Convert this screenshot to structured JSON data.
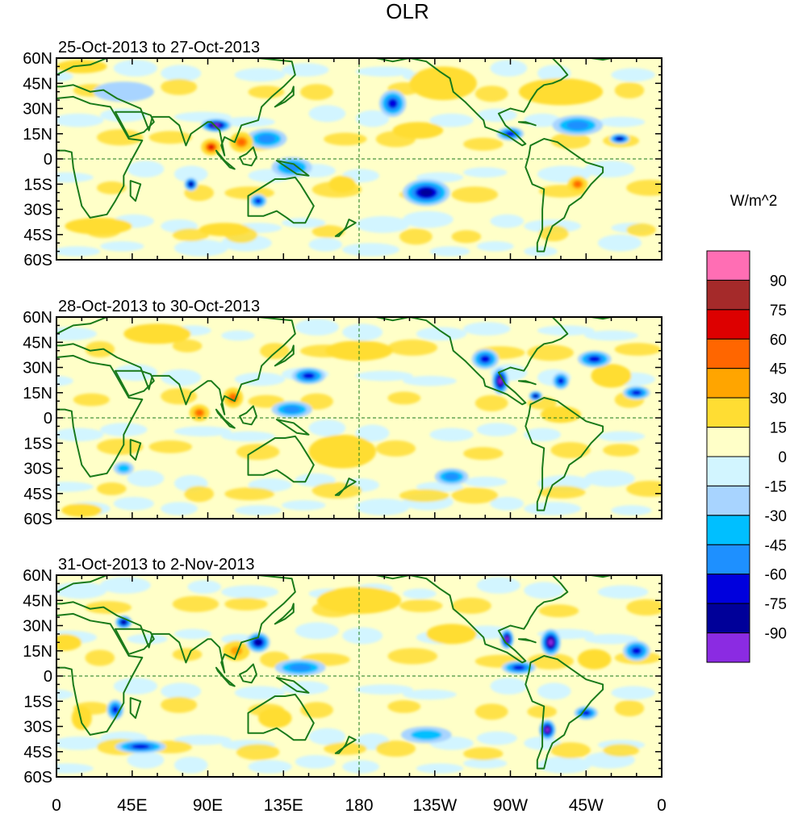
{
  "chart_data": {
    "type": "heatmap",
    "title": "OLR",
    "units_label": "W/m^2",
    "x_ticks": [
      "0",
      "45E",
      "90E",
      "135E",
      "180",
      "135W",
      "90W",
      "45W",
      "0"
    ],
    "y_ticks": [
      "60N",
      "45N",
      "30N",
      "15N",
      "0",
      "15S",
      "30S",
      "45S",
      "60S"
    ],
    "lon_range": [
      0,
      360
    ],
    "lat_range": [
      -60,
      60
    ],
    "panels": [
      {
        "label": "25-Oct-2013 to 27-Oct-2013",
        "anomalies": [
          {
            "lon": 95,
            "lat": 20,
            "rx": 9,
            "ry": 4,
            "value": -90
          },
          {
            "lon": 80,
            "lat": -15,
            "rx": 4,
            "ry": 4,
            "value": -75
          },
          {
            "lon": 120,
            "lat": -25,
            "rx": 5,
            "ry": 4,
            "value": -60
          },
          {
            "lon": 200,
            "lat": 33,
            "rx": 8,
            "ry": 8,
            "value": -60
          },
          {
            "lon": 220,
            "lat": -20,
            "rx": 14,
            "ry": 8,
            "value": -75
          },
          {
            "lon": 270,
            "lat": 15,
            "rx": 8,
            "ry": 4,
            "value": -60
          },
          {
            "lon": 310,
            "lat": 20,
            "rx": 15,
            "ry": 6,
            "value": -45
          },
          {
            "lon": 335,
            "lat": 12,
            "rx": 6,
            "ry": 3,
            "value": -75
          },
          {
            "lon": 125,
            "lat": 12,
            "rx": 12,
            "ry": 6,
            "value": -45
          },
          {
            "lon": 140,
            "lat": -5,
            "rx": 12,
            "ry": 6,
            "value": -45
          },
          {
            "lon": 40,
            "lat": 40,
            "rx": 18,
            "ry": 6,
            "value": -15
          },
          {
            "lon": 92,
            "lat": 7,
            "rx": 6,
            "ry": 5,
            "value": 75
          },
          {
            "lon": 110,
            "lat": 10,
            "rx": 7,
            "ry": 6,
            "value": 60
          },
          {
            "lon": 15,
            "lat": 55,
            "rx": 15,
            "ry": 4,
            "value": 30
          },
          {
            "lon": 230,
            "lat": 45,
            "rx": 20,
            "ry": 10,
            "value": 30
          },
          {
            "lon": 300,
            "lat": 40,
            "rx": 25,
            "ry": 8,
            "value": 30
          },
          {
            "lon": 310,
            "lat": -15,
            "rx": 6,
            "ry": 5,
            "value": 60
          },
          {
            "lon": 215,
            "lat": 17,
            "rx": 15,
            "ry": 5,
            "value": 30
          },
          {
            "lon": 25,
            "lat": -40,
            "rx": 20,
            "ry": 5,
            "value": 30
          },
          {
            "lon": 170,
            "lat": -15,
            "rx": 8,
            "ry": 5,
            "value": 30
          },
          {
            "lon": 100,
            "lat": -42,
            "rx": 15,
            "ry": 4,
            "value": 30
          }
        ]
      },
      {
        "label": "28-Oct-2013 to 30-Oct-2013",
        "anomalies": [
          {
            "lon": 264,
            "lat": 22,
            "rx": 5,
            "ry": 8,
            "value": -90
          },
          {
            "lon": 255,
            "lat": 35,
            "rx": 8,
            "ry": 6,
            "value": -60
          },
          {
            "lon": 285,
            "lat": 13,
            "rx": 4,
            "ry": 3,
            "value": -75
          },
          {
            "lon": 300,
            "lat": 22,
            "rx": 5,
            "ry": 5,
            "value": -60
          },
          {
            "lon": 320,
            "lat": 35,
            "rx": 10,
            "ry": 5,
            "value": -60
          },
          {
            "lon": 345,
            "lat": 15,
            "rx": 8,
            "ry": 4,
            "value": -60
          },
          {
            "lon": 150,
            "lat": 25,
            "rx": 10,
            "ry": 5,
            "value": -60
          },
          {
            "lon": 140,
            "lat": 5,
            "rx": 12,
            "ry": 5,
            "value": -45
          },
          {
            "lon": 235,
            "lat": -35,
            "rx": 10,
            "ry": 5,
            "value": -45
          },
          {
            "lon": 40,
            "lat": -30,
            "rx": 6,
            "ry": 4,
            "value": -30
          },
          {
            "lon": 105,
            "lat": 12,
            "rx": 6,
            "ry": 6,
            "value": 60
          },
          {
            "lon": 85,
            "lat": 3,
            "rx": 6,
            "ry": 5,
            "value": 60
          },
          {
            "lon": 180,
            "lat": 40,
            "rx": 20,
            "ry": 6,
            "value": 30
          },
          {
            "lon": 170,
            "lat": -20,
            "rx": 20,
            "ry": 10,
            "value": 30
          },
          {
            "lon": 330,
            "lat": 25,
            "rx": 12,
            "ry": 7,
            "value": 30
          },
          {
            "lon": 60,
            "lat": 50,
            "rx": 20,
            "ry": 6,
            "value": 30
          },
          {
            "lon": 300,
            "lat": 2,
            "rx": 12,
            "ry": 5,
            "value": 30
          },
          {
            "lon": 15,
            "lat": -55,
            "rx": 12,
            "ry": 4,
            "value": 30
          }
        ]
      },
      {
        "label": "31-Oct-2013 to 2-Nov-2013",
        "anomalies": [
          {
            "lon": 294,
            "lat": 20,
            "rx": 6,
            "ry": 8,
            "value": -90
          },
          {
            "lon": 268,
            "lat": 22,
            "rx": 4,
            "ry": 6,
            "value": -90
          },
          {
            "lon": 292,
            "lat": -32,
            "rx": 5,
            "ry": 6,
            "value": -90
          },
          {
            "lon": 120,
            "lat": 20,
            "rx": 7,
            "ry": 6,
            "value": -75
          },
          {
            "lon": 40,
            "lat": 32,
            "rx": 5,
            "ry": 4,
            "value": -75
          },
          {
            "lon": 35,
            "lat": -20,
            "rx": 5,
            "ry": 6,
            "value": -60
          },
          {
            "lon": 50,
            "lat": -42,
            "rx": 15,
            "ry": 4,
            "value": -60
          },
          {
            "lon": 315,
            "lat": -22,
            "rx": 7,
            "ry": 4,
            "value": -60
          },
          {
            "lon": 345,
            "lat": 15,
            "rx": 8,
            "ry": 6,
            "value": -60
          },
          {
            "lon": 275,
            "lat": 5,
            "rx": 10,
            "ry": 4,
            "value": -60
          },
          {
            "lon": 145,
            "lat": 5,
            "rx": 15,
            "ry": 5,
            "value": -45
          },
          {
            "lon": 220,
            "lat": -35,
            "rx": 15,
            "ry": 5,
            "value": -30
          },
          {
            "lon": 107,
            "lat": 15,
            "rx": 8,
            "ry": 6,
            "value": 45
          },
          {
            "lon": 130,
            "lat": -25,
            "rx": 10,
            "ry": 6,
            "value": 30
          },
          {
            "lon": 180,
            "lat": 45,
            "rx": 25,
            "ry": 8,
            "value": 30
          },
          {
            "lon": 320,
            "lat": 10,
            "rx": 10,
            "ry": 6,
            "value": 30
          },
          {
            "lon": 15,
            "lat": -25,
            "rx": 6,
            "ry": 7,
            "value": 30
          },
          {
            "lon": 5,
            "lat": 20,
            "rx": 10,
            "ry": 5,
            "value": 30
          },
          {
            "lon": 235,
            "lat": 25,
            "rx": 15,
            "ry": 6,
            "value": 30
          }
        ]
      }
    ],
    "colorbar": {
      "levels": [
        "90",
        "75",
        "60",
        "45",
        "30",
        "15",
        "0",
        "-15",
        "-30",
        "-45",
        "-60",
        "-75",
        "-90"
      ],
      "colors": [
        "#ff6eb4",
        "#a52a2a",
        "#dd0000",
        "#ff6600",
        "#ffa500",
        "#ffdd33",
        "#ffffc8",
        "#d2f5ff",
        "#a8d4ff",
        "#00bfff",
        "#1e90ff",
        "#0000dd",
        "#000099",
        "#8b2be2"
      ]
    },
    "colors": {
      "coast": "#1a7a1a",
      "zero_line": "#1a7a1a"
    }
  }
}
